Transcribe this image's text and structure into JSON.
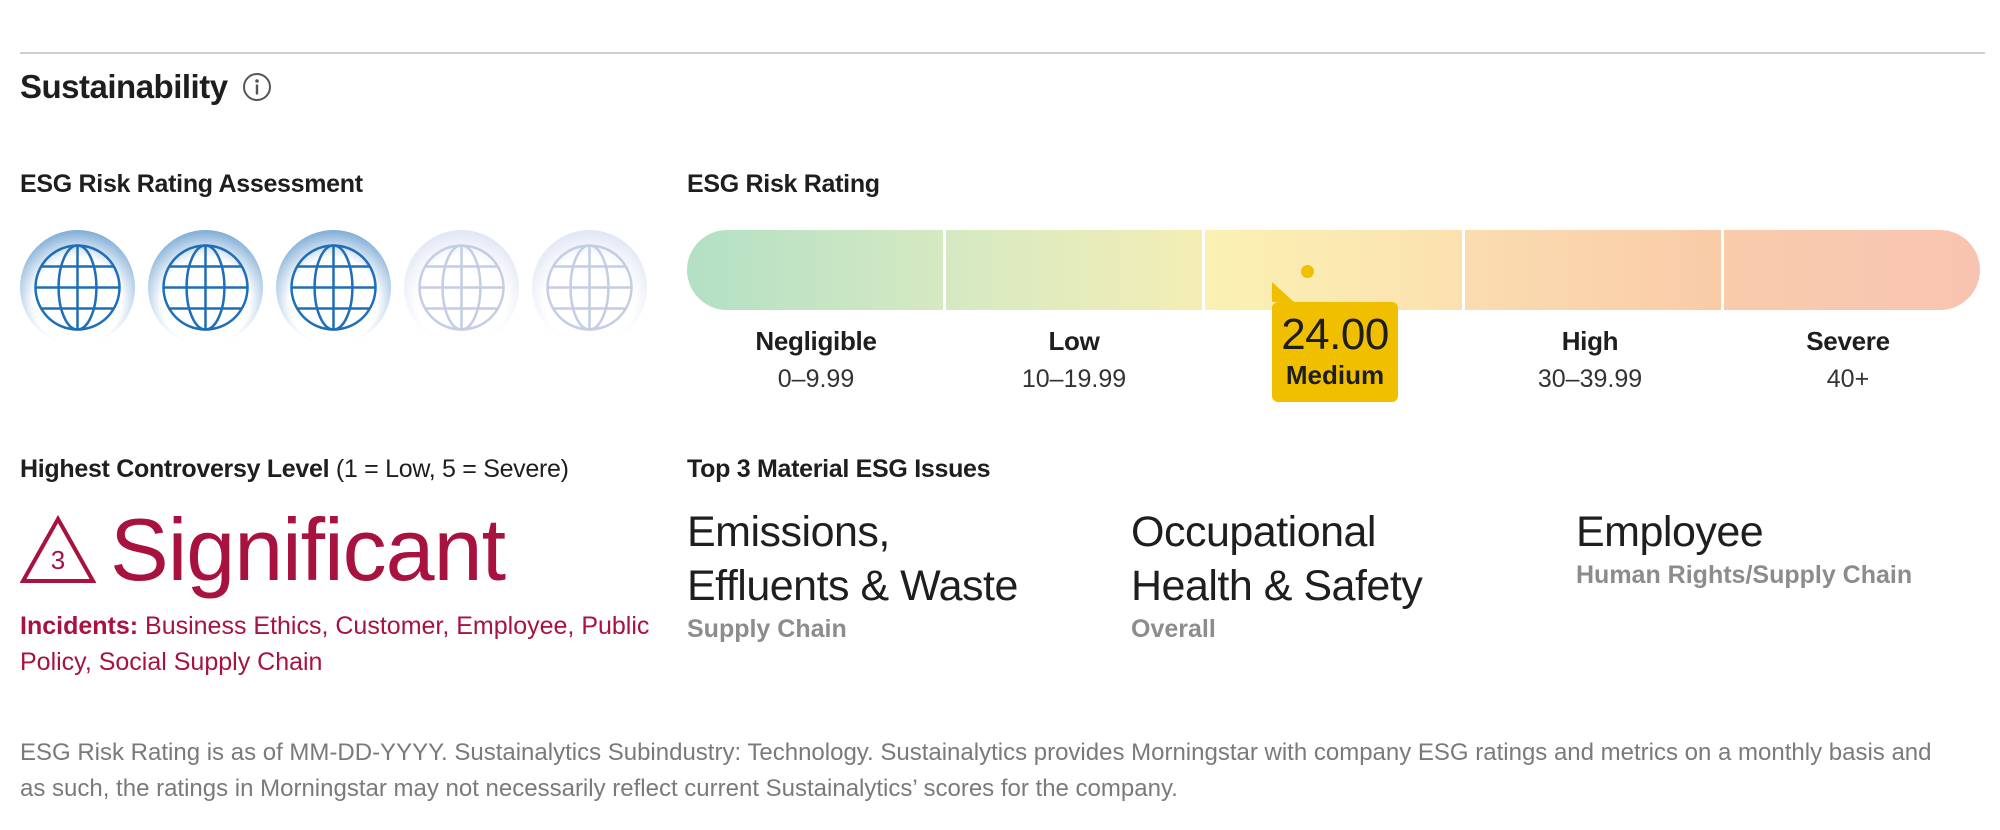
{
  "section": {
    "title": "Sustainability",
    "info_icon": "info-icon"
  },
  "assessment": {
    "heading": "ESG Risk Rating Assessment",
    "globes_total": 5,
    "globes_filled": 3,
    "filled_color": "#1f6fb8",
    "empty_color": "#c8d2ea"
  },
  "risk_rating": {
    "heading": "ESG Risk Rating",
    "score": "24.00",
    "score_value": 24.0,
    "level": "Medium",
    "scale_max": 50,
    "bands": [
      {
        "name": "Negligible",
        "range": "0–9.99",
        "color_start": "#b3e0c5",
        "color_end": "#d5e9c2"
      },
      {
        "name": "Low",
        "range": "10–19.99",
        "color_start": "#d5e9c2",
        "color_end": "#f4eeb5"
      },
      {
        "name": "Medium",
        "range": "",
        "color_start": "#fbf1b3",
        "color_end": "#fbe1b0"
      },
      {
        "name": "High",
        "range": "30–39.99",
        "color_start": "#fbdcb0",
        "color_end": "#f9cba8"
      },
      {
        "name": "Severe",
        "range": "40+",
        "color_start": "#f9cbab",
        "color_end": "#f8c4b2"
      }
    ],
    "accent_color": "#f0c000"
  },
  "controversy": {
    "heading_bold": "Highest Controversy Level",
    "heading_note": " (1 = Low, 5 = Severe)",
    "level_number": "3",
    "level_label": "Significant",
    "incidents_label": "Incidents:",
    "incidents_text": " Business Ethics, Customer, Employee, Public Policy, Social Supply Chain",
    "color": "#a8123e"
  },
  "issues": {
    "heading": "Top 3 Material ESG Issues",
    "items": [
      {
        "name": "Emissions, Effluents & Waste",
        "sub": "Supply Chain"
      },
      {
        "name": "Occupational Health & Safety",
        "sub": "Overall"
      },
      {
        "name": "Employee",
        "sub": "Human Rights/Supply Chain"
      }
    ]
  },
  "footnote": "ESG Risk Rating is as of MM-DD-YYYY. Sustainalytics Subindustry: Technology. Sustainalytics provides Morningstar with company ESG ratings and metrics on a monthly basis and as such, the ratings in Morningstar may not necessarily reflect current Sustainalytics’ scores for the company."
}
